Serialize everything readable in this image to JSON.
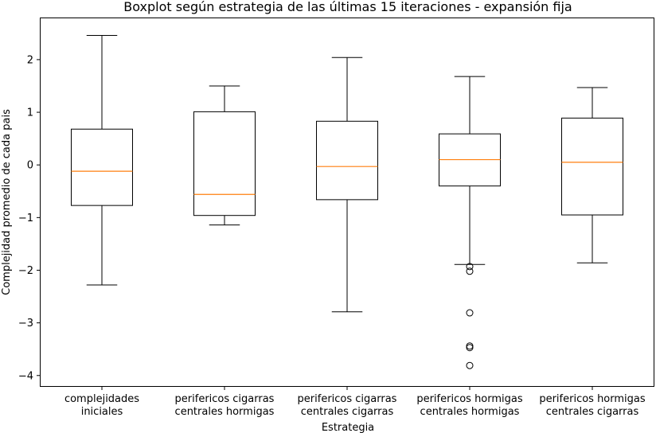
{
  "chart_data": {
    "type": "boxplot",
    "title": "Boxplot según estrategia de las últimas 15 iteraciones - expansión fija",
    "xlabel": "Estrategia",
    "ylabel": "Complejidad promedio de cada pais",
    "ylim": [
      -4.2,
      2.8
    ],
    "yticks": [
      -4,
      -3,
      -2,
      -1,
      0,
      1,
      2
    ],
    "grid": false,
    "colors": {
      "box": "#000000",
      "median": "#ff7f0e",
      "background": "#ffffff"
    },
    "categories": [
      [
        "complejidades",
        "iniciales"
      ],
      [
        "perifericos cigarras",
        "centrales hormigas"
      ],
      [
        "perifericos cigarras",
        "centrales cigarras"
      ],
      [
        "perifericos hormigas",
        "centrales hormigas"
      ],
      [
        "perifericos hormigas",
        "centrales cigarras"
      ]
    ],
    "boxes": [
      {
        "whislo": -2.28,
        "q1": -0.77,
        "med": -0.12,
        "q3": 0.68,
        "whishi": 2.46,
        "fliers": []
      },
      {
        "whislo": -1.14,
        "q1": -0.96,
        "med": -0.56,
        "q3": 1.01,
        "whishi": 1.5,
        "fliers": []
      },
      {
        "whislo": -2.79,
        "q1": -0.66,
        "med": -0.03,
        "q3": 0.83,
        "whishi": 2.04,
        "fliers": []
      },
      {
        "whislo": -1.89,
        "q1": -0.4,
        "med": 0.1,
        "q3": 0.59,
        "whishi": 1.68,
        "fliers": [
          -1.93,
          -2.02,
          -2.81,
          -3.44,
          -3.47,
          -3.81
        ]
      },
      {
        "whislo": -1.86,
        "q1": -0.95,
        "med": 0.05,
        "q3": 0.89,
        "whishi": 1.47,
        "fliers": []
      }
    ]
  }
}
